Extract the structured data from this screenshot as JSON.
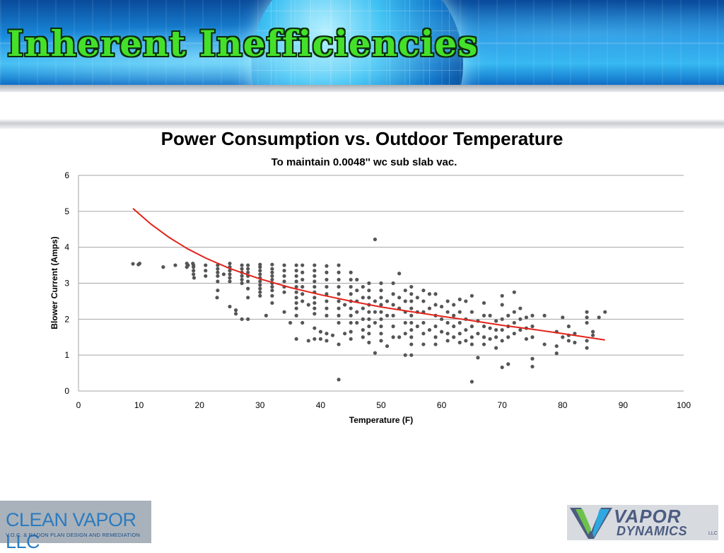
{
  "slide": {
    "title": "Inherent Inefficiencies"
  },
  "logos": {
    "left_name": "CLEAN VAPOR LLC",
    "left_tagline": "V.O.C. & RADON PLAN DESIGN AND REMEDIATION",
    "right_name_line1": "VAPOR",
    "right_name_line2": "DYNAMICS",
    "right_suffix": "LLC"
  },
  "colors": {
    "banner_title": "#45e02a",
    "points": "#555555",
    "trendline": "#e2231a",
    "gridline": "#a6a6a6"
  },
  "chart_data": {
    "type": "scatter",
    "title": "Power Consumption vs. Outdoor Temperature",
    "subtitle": "To maintain 0.0048'' wc sub slab vac.",
    "xlabel": "Temperature (F)",
    "ylabel": "Blower Current (Amps)",
    "xlim": [
      0,
      100
    ],
    "ylim": [
      0,
      6
    ],
    "xticks": [
      0,
      10,
      20,
      30,
      40,
      50,
      60,
      70,
      80,
      90,
      100
    ],
    "yticks": [
      0,
      1,
      2,
      3,
      4,
      5,
      6
    ],
    "grid": "horizontal",
    "legend": "none",
    "trendline": {
      "type": "curve",
      "x": [
        9,
        12,
        15,
        18,
        21,
        25,
        30,
        35,
        40,
        45,
        50,
        55,
        60,
        65,
        70,
        75,
        80,
        87
      ],
      "y": [
        5.08,
        4.64,
        4.27,
        3.96,
        3.7,
        3.41,
        3.12,
        2.88,
        2.68,
        2.5,
        2.34,
        2.21,
        2.08,
        1.96,
        1.83,
        1.72,
        1.6,
        1.42
      ]
    },
    "points": [
      [
        9,
        3.54
      ],
      [
        9.9,
        3.52
      ],
      [
        10.1,
        3.55
      ],
      [
        14,
        3.45
      ],
      [
        16,
        3.5
      ],
      [
        17.9,
        3.55
      ],
      [
        17.9,
        3.45
      ],
      [
        18.1,
        3.5
      ],
      [
        18.9,
        3.55
      ],
      [
        19,
        3.5
      ],
      [
        19,
        3.45
      ],
      [
        19,
        3.35
      ],
      [
        19,
        3.25
      ],
      [
        19.1,
        3.15
      ],
      [
        21,
        3.5
      ],
      [
        21,
        3.35
      ],
      [
        21,
        3.2
      ],
      [
        23,
        3.5
      ],
      [
        23,
        3.4
      ],
      [
        23,
        3.3
      ],
      [
        23,
        3.2
      ],
      [
        23,
        3.05
      ],
      [
        23,
        2.8
      ],
      [
        22.9,
        2.6
      ],
      [
        24,
        3.25
      ],
      [
        25,
        3.55
      ],
      [
        25,
        3.45
      ],
      [
        25,
        3.35
      ],
      [
        25,
        3.25
      ],
      [
        25,
        3.15
      ],
      [
        25,
        3.05
      ],
      [
        25,
        2.35
      ],
      [
        26,
        2.25
      ],
      [
        26,
        2.15
      ],
      [
        27,
        2.0
      ],
      [
        27,
        3.5
      ],
      [
        27,
        3.4
      ],
      [
        27,
        3.3
      ],
      [
        27,
        3.2
      ],
      [
        27,
        3.1
      ],
      [
        27,
        3.0
      ],
      [
        28,
        3.5
      ],
      [
        28,
        3.4
      ],
      [
        28,
        3.3
      ],
      [
        28,
        3.2
      ],
      [
        28,
        3.05
      ],
      [
        28,
        2.85
      ],
      [
        28,
        2.6
      ],
      [
        28,
        2.0
      ],
      [
        30,
        3.52
      ],
      [
        30,
        3.45
      ],
      [
        30,
        3.35
      ],
      [
        30,
        3.25
      ],
      [
        30,
        3.15
      ],
      [
        30,
        3.05
      ],
      [
        30,
        2.95
      ],
      [
        30,
        2.85
      ],
      [
        30,
        2.75
      ],
      [
        30,
        2.65
      ],
      [
        31,
        2.1
      ],
      [
        32,
        3.52
      ],
      [
        32,
        3.4
      ],
      [
        32,
        3.3
      ],
      [
        32,
        3.2
      ],
      [
        32,
        3.1
      ],
      [
        32,
        3.0
      ],
      [
        32,
        2.9
      ],
      [
        32,
        2.8
      ],
      [
        32,
        2.65
      ],
      [
        32,
        2.45
      ],
      [
        34,
        3.5
      ],
      [
        34,
        3.35
      ],
      [
        34,
        3.2
      ],
      [
        34,
        3.05
      ],
      [
        34,
        2.9
      ],
      [
        34,
        2.75
      ],
      [
        34,
        2.2
      ],
      [
        35,
        1.9
      ],
      [
        36,
        3.5
      ],
      [
        36,
        3.35
      ],
      [
        36,
        3.2
      ],
      [
        36,
        3.05
      ],
      [
        36,
        2.9
      ],
      [
        36,
        2.75
      ],
      [
        36,
        2.6
      ],
      [
        36,
        2.45
      ],
      [
        36,
        2.3
      ],
      [
        36,
        2.1
      ],
      [
        36,
        1.45
      ],
      [
        37,
        3.5
      ],
      [
        37,
        3.3
      ],
      [
        37,
        3.1
      ],
      [
        37,
        2.9
      ],
      [
        37,
        2.7
      ],
      [
        37,
        2.5
      ],
      [
        37,
        1.9
      ],
      [
        38,
        2.4
      ],
      [
        38,
        1.4
      ],
      [
        39,
        3.5
      ],
      [
        39,
        3.35
      ],
      [
        39,
        3.2
      ],
      [
        39,
        3.05
      ],
      [
        39,
        2.9
      ],
      [
        39,
        2.75
      ],
      [
        39,
        2.6
      ],
      [
        39,
        2.45
      ],
      [
        39,
        2.3
      ],
      [
        39,
        2.15
      ],
      [
        39,
        1.75
      ],
      [
        39,
        1.45
      ],
      [
        40,
        1.65
      ],
      [
        40,
        1.45
      ],
      [
        41,
        3.48
      ],
      [
        41,
        3.3
      ],
      [
        41,
        3.1
      ],
      [
        41,
        2.9
      ],
      [
        41,
        2.7
      ],
      [
        41,
        2.5
      ],
      [
        41,
        2.3
      ],
      [
        41,
        2.1
      ],
      [
        41,
        1.6
      ],
      [
        41,
        1.4
      ],
      [
        42,
        1.55
      ],
      [
        43,
        3.5
      ],
      [
        43,
        3.3
      ],
      [
        43,
        3.1
      ],
      [
        43,
        2.9
      ],
      [
        43,
        2.7
      ],
      [
        43,
        2.5
      ],
      [
        43,
        2.3
      ],
      [
        43,
        2.1
      ],
      [
        43,
        1.9
      ],
      [
        43,
        1.3
      ],
      [
        43,
        0.32
      ],
      [
        44,
        2.4
      ],
      [
        44,
        1.6
      ],
      [
        45,
        3.3
      ],
      [
        45,
        3.1
      ],
      [
        45,
        2.9
      ],
      [
        45,
        2.7
      ],
      [
        45,
        2.5
      ],
      [
        45,
        2.3
      ],
      [
        45,
        2.1
      ],
      [
        45,
        1.9
      ],
      [
        45,
        1.65
      ],
      [
        45,
        1.45
      ],
      [
        46,
        3.1
      ],
      [
        46,
        2.8
      ],
      [
        46,
        2.5
      ],
      [
        46,
        2.2
      ],
      [
        46,
        1.9
      ],
      [
        47,
        2.9
      ],
      [
        47,
        2.6
      ],
      [
        47,
        2.3
      ],
      [
        47,
        2.0
      ],
      [
        47,
        1.7
      ],
      [
        47,
        1.5
      ],
      [
        48,
        3.0
      ],
      [
        48,
        2.8
      ],
      [
        48,
        2.6
      ],
      [
        48,
        2.4
      ],
      [
        48,
        2.2
      ],
      [
        48,
        2.0
      ],
      [
        48,
        1.8
      ],
      [
        48,
        1.6
      ],
      [
        48,
        1.35
      ],
      [
        49,
        4.22
      ],
      [
        49,
        2.5
      ],
      [
        49,
        2.2
      ],
      [
        49,
        1.9
      ],
      [
        49,
        1.06
      ],
      [
        50,
        3.0
      ],
      [
        50,
        2.8
      ],
      [
        50,
        2.6
      ],
      [
        50,
        2.4
      ],
      [
        50,
        2.2
      ],
      [
        50,
        2.0
      ],
      [
        50,
        1.8
      ],
      [
        50,
        1.6
      ],
      [
        50,
        1.4
      ],
      [
        51,
        2.5
      ],
      [
        51,
        2.1
      ],
      [
        51,
        1.25
      ],
      [
        52,
        3.0
      ],
      [
        52,
        2.7
      ],
      [
        52,
        2.4
      ],
      [
        52,
        2.1
      ],
      [
        52,
        1.8
      ],
      [
        52,
        1.5
      ],
      [
        53,
        3.27
      ],
      [
        53,
        2.6
      ],
      [
        53,
        2.3
      ],
      [
        53,
        1.5
      ],
      [
        54,
        2.8
      ],
      [
        54,
        2.5
      ],
      [
        54,
        2.2
      ],
      [
        54,
        1.9
      ],
      [
        54,
        1.6
      ],
      [
        54,
        1.0
      ],
      [
        55,
        2.9
      ],
      [
        55,
        2.7
      ],
      [
        55,
        2.5
      ],
      [
        55,
        2.3
      ],
      [
        55,
        2.1
      ],
      [
        55,
        1.9
      ],
      [
        55,
        1.7
      ],
      [
        55,
        1.5
      ],
      [
        55,
        1.3
      ],
      [
        55,
        1.0
      ],
      [
        56,
        2.6
      ],
      [
        56,
        2.2
      ],
      [
        56,
        1.8
      ],
      [
        57,
        2.8
      ],
      [
        57,
        2.5
      ],
      [
        57,
        2.2
      ],
      [
        57,
        1.9
      ],
      [
        57,
        1.6
      ],
      [
        57,
        1.3
      ],
      [
        58,
        2.7
      ],
      [
        58,
        2.3
      ],
      [
        58,
        1.7
      ],
      [
        59,
        2.7
      ],
      [
        59,
        2.4
      ],
      [
        59,
        2.1
      ],
      [
        59,
        1.8
      ],
      [
        59,
        1.5
      ],
      [
        59,
        1.3
      ],
      [
        60,
        2.35
      ],
      [
        60,
        2.0
      ],
      [
        60,
        1.65
      ],
      [
        61,
        2.5
      ],
      [
        61,
        2.2
      ],
      [
        61,
        1.9
      ],
      [
        61,
        1.6
      ],
      [
        61,
        1.4
      ],
      [
        62,
        2.4
      ],
      [
        62,
        2.1
      ],
      [
        62,
        1.8
      ],
      [
        62,
        1.5
      ],
      [
        63,
        2.55
      ],
      [
        63,
        2.2
      ],
      [
        63,
        1.9
      ],
      [
        63,
        1.6
      ],
      [
        63,
        1.35
      ],
      [
        64,
        2.5
      ],
      [
        64,
        2.0
      ],
      [
        64,
        1.7
      ],
      [
        64,
        1.4
      ],
      [
        65,
        2.65
      ],
      [
        65,
        2.2
      ],
      [
        65,
        1.8
      ],
      [
        65,
        1.5
      ],
      [
        65,
        1.3
      ],
      [
        65,
        0.26
      ],
      [
        66,
        1.95
      ],
      [
        66,
        1.6
      ],
      [
        66,
        0.93
      ],
      [
        67,
        2.45
      ],
      [
        67,
        2.1
      ],
      [
        67,
        1.8
      ],
      [
        67,
        1.5
      ],
      [
        67,
        1.3
      ],
      [
        68,
        2.1
      ],
      [
        68,
        1.75
      ],
      [
        68,
        1.45
      ],
      [
        69,
        1.95
      ],
      [
        69,
        1.7
      ],
      [
        69,
        1.5
      ],
      [
        69,
        1.2
      ],
      [
        70,
        2.65
      ],
      [
        70,
        2.4
      ],
      [
        70,
        2.0
      ],
      [
        70,
        1.7
      ],
      [
        70,
        1.4
      ],
      [
        70,
        0.66
      ],
      [
        71,
        2.1
      ],
      [
        71,
        1.8
      ],
      [
        71,
        1.5
      ],
      [
        71,
        0.75
      ],
      [
        72,
        2.75
      ],
      [
        72,
        2.2
      ],
      [
        72,
        1.9
      ],
      [
        72,
        1.6
      ],
      [
        73,
        2.3
      ],
      [
        73,
        2.0
      ],
      [
        73,
        1.7
      ],
      [
        74,
        2.05
      ],
      [
        74,
        1.75
      ],
      [
        74,
        1.45
      ],
      [
        75,
        2.1
      ],
      [
        75,
        1.8
      ],
      [
        75,
        1.5
      ],
      [
        75,
        0.68
      ],
      [
        75,
        0.9
      ],
      [
        77,
        2.1
      ],
      [
        77,
        1.3
      ],
      [
        79,
        1.65
      ],
      [
        79,
        1.25
      ],
      [
        79,
        1.05
      ],
      [
        80,
        2.05
      ],
      [
        80,
        1.5
      ],
      [
        81,
        1.8
      ],
      [
        81,
        1.55
      ],
      [
        81,
        1.4
      ],
      [
        82,
        1.6
      ],
      [
        82,
        1.35
      ],
      [
        84,
        2.2
      ],
      [
        84,
        2.05
      ],
      [
        84,
        1.9
      ],
      [
        84,
        1.4
      ],
      [
        84,
        1.2
      ],
      [
        85,
        1.65
      ],
      [
        85,
        1.55
      ],
      [
        86,
        2.05
      ],
      [
        87,
        2.2
      ]
    ]
  }
}
